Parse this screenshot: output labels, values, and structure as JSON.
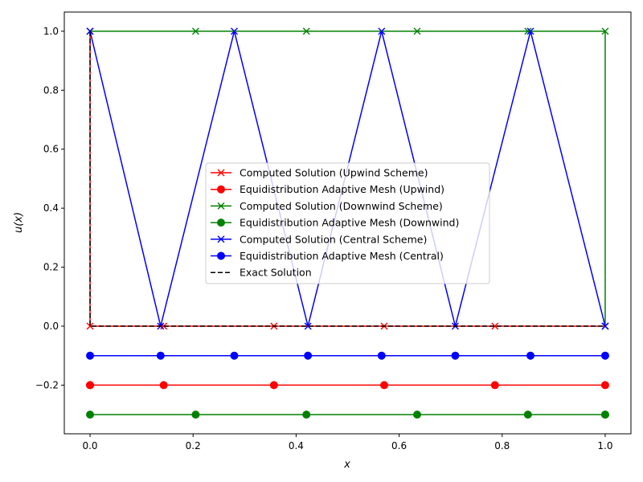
{
  "chart_data": {
    "type": "line",
    "title": "",
    "xlabel": "x",
    "ylabel": "u(x)",
    "xlim": [
      -0.05,
      1.05
    ],
    "ylim": [
      -0.365,
      1.065
    ],
    "xticks": [
      0.0,
      0.2,
      0.4,
      0.6,
      0.8,
      1.0
    ],
    "xtick_labels": [
      "0.0",
      "0.2",
      "0.4",
      "0.6",
      "0.8",
      "1.0"
    ],
    "yticks": [
      -0.2,
      0.0,
      0.2,
      0.4,
      0.6,
      0.8,
      1.0
    ],
    "ytick_labels": [
      "−0.2",
      "0.0",
      "0.2",
      "0.4",
      "0.6",
      "0.8",
      "1.0"
    ],
    "grid": false,
    "legend_position": "center",
    "series": [
      {
        "name": "Computed Solution (Upwind Scheme)",
        "color": "#ff0000",
        "marker": "x",
        "linestyle": "solid",
        "x": [
          0.0,
          0.0,
          0.143,
          0.357,
          0.571,
          0.786,
          1.0
        ],
        "y": [
          1.0,
          0.0,
          0.0,
          0.0,
          0.0,
          0.0,
          0.0
        ]
      },
      {
        "name": "Equidistribution Adaptive Mesh (Upwind)",
        "color": "#ff0000",
        "marker": "o",
        "linestyle": "solid",
        "x": [
          0.0,
          0.0,
          0.143,
          0.357,
          0.571,
          0.786,
          1.0
        ],
        "y": [
          -0.2,
          -0.2,
          -0.2,
          -0.2,
          -0.2,
          -0.2,
          -0.2
        ]
      },
      {
        "name": "Computed Solution (Downwind Scheme)",
        "color": "#008000",
        "marker": "x",
        "linestyle": "solid",
        "x": [
          0.0,
          0.205,
          0.42,
          0.635,
          0.85,
          1.0,
          1.0
        ],
        "y": [
          1.0,
          1.0,
          1.0,
          1.0,
          1.0,
          1.0,
          0.0
        ]
      },
      {
        "name": "Equidistribution Adaptive Mesh (Downwind)",
        "color": "#008000",
        "marker": "o",
        "linestyle": "solid",
        "x": [
          0.0,
          0.205,
          0.42,
          0.635,
          0.85,
          1.0,
          1.0
        ],
        "y": [
          -0.3,
          -0.3,
          -0.3,
          -0.3,
          -0.3,
          -0.3,
          -0.3
        ]
      },
      {
        "name": "Computed Solution (Central Scheme)",
        "color": "#0000ff",
        "marker": "x",
        "linestyle": "solid",
        "x": [
          0.0,
          0.137,
          0.28,
          0.423,
          0.566,
          0.709,
          0.855,
          1.0
        ],
        "y": [
          1.0,
          0.0,
          1.0,
          0.0,
          1.0,
          0.0,
          1.0,
          0.0
        ]
      },
      {
        "name": "Equidistribution Adaptive Mesh (Central)",
        "color": "#0000ff",
        "marker": "o",
        "linestyle": "solid",
        "x": [
          0.0,
          0.137,
          0.28,
          0.423,
          0.566,
          0.709,
          0.855,
          1.0
        ],
        "y": [
          -0.1,
          -0.1,
          -0.1,
          -0.1,
          -0.1,
          -0.1,
          -0.1,
          -0.1
        ]
      },
      {
        "name": "Exact Solution",
        "color": "#000000",
        "marker": "none",
        "linestyle": "dashed",
        "x": [
          0.0,
          0.0,
          1.0
        ],
        "y": [
          1.0,
          0.0,
          0.0
        ]
      }
    ]
  }
}
